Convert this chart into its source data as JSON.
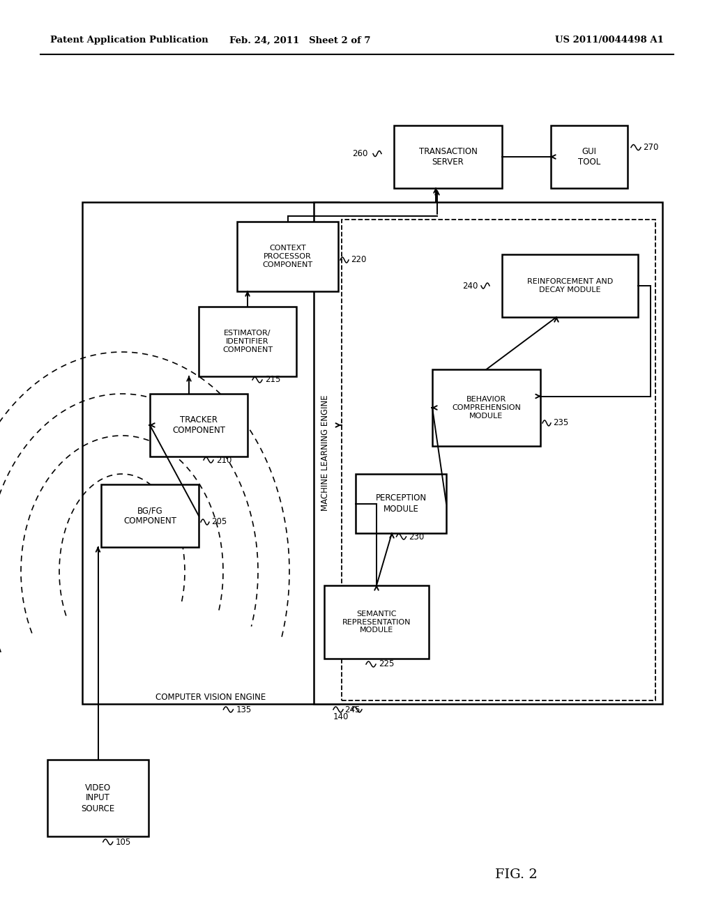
{
  "bg_color": "#ffffff",
  "header_left": "Patent Application Publication",
  "header_mid": "Feb. 24, 2011   Sheet 2 of 7",
  "header_right": "US 2011/0044498 A1",
  "fig_label": "FIG. 2"
}
